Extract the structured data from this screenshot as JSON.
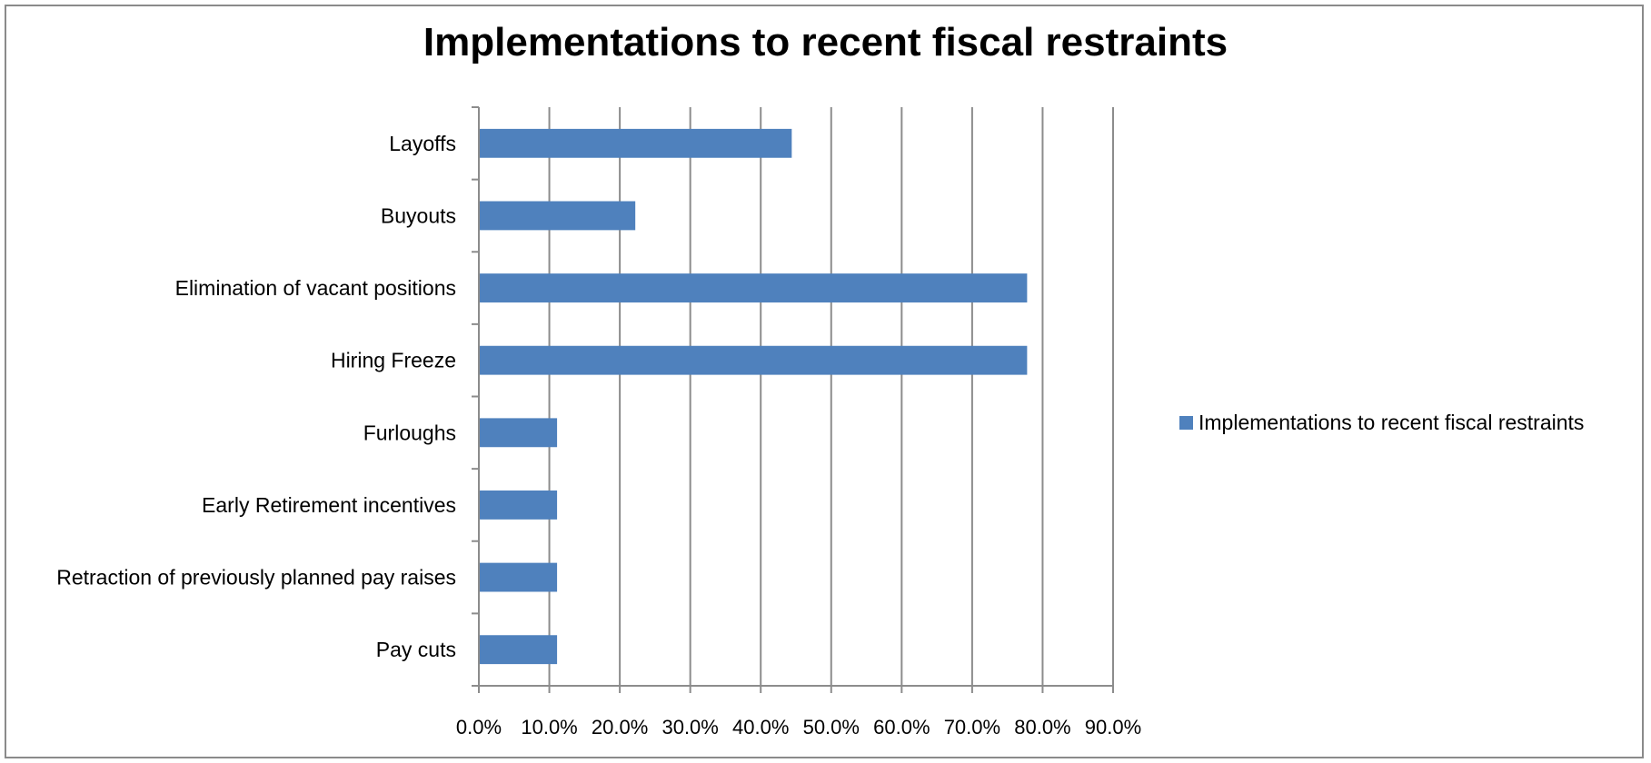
{
  "chart_data": {
    "type": "bar",
    "orientation": "horizontal",
    "title": "Implementations to recent fiscal restraints",
    "categories": [
      "Layoffs",
      "Buyouts",
      "Elimination of vacant positions",
      "Hiring Freeze",
      "Furloughs",
      "Early Retirement incentives",
      "Retraction of previously planned pay raises",
      "Pay cuts"
    ],
    "series": [
      {
        "name": "Implementations to recent fiscal restraints",
        "values": [
          44.4,
          22.2,
          77.8,
          77.8,
          11.1,
          11.1,
          11.1,
          11.1
        ],
        "color": "#4f81bd"
      }
    ],
    "xlim": [
      0,
      90
    ],
    "xticks": [
      0,
      10,
      20,
      30,
      40,
      50,
      60,
      70,
      80,
      90
    ],
    "xtick_labels": [
      "0.0%",
      "10.0%",
      "20.0%",
      "30.0%",
      "40.0%",
      "50.0%",
      "60.0%",
      "70.0%",
      "80.0%",
      "90.0%"
    ],
    "xlabel": "",
    "ylabel": "",
    "grid": "vertical",
    "legend_position": "right"
  }
}
